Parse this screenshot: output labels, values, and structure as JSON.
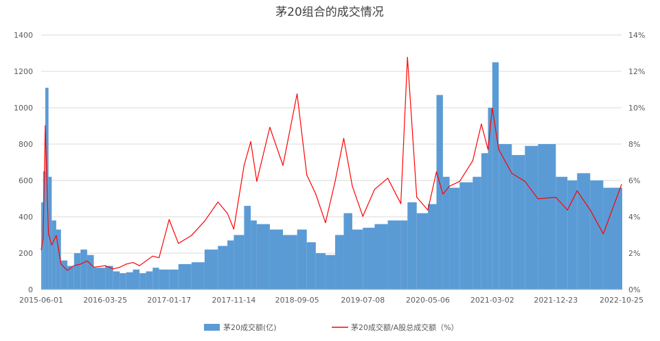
{
  "chart_data": {
    "type": "bar",
    "title": "茅20组合的成交情况",
    "grid": true,
    "legend_position": "bottom",
    "x_tick_labels": [
      "2015-06-01",
      "2016-03-25",
      "2017-01-17",
      "2017-11-14",
      "2018-09-05",
      "2019-07-08",
      "2020-05-06",
      "2021-03-02",
      "2021-12-23",
      "2022-10-25"
    ],
    "y_left": {
      "range": [
        0,
        1400
      ],
      "ticks": [
        "0",
        "200",
        "400",
        "600",
        "800",
        "1000",
        "1200",
        "1400"
      ]
    },
    "y_right": {
      "range": [
        0,
        16
      ],
      "ticks": [
        "0%",
        "2%",
        "4%",
        "6%",
        "8%",
        "10%",
        "12%",
        "14%",
        "16%"
      ]
    },
    "series": [
      {
        "name": "茅20成交额(亿)",
        "type": "bar",
        "axis": "left",
        "color": "#5b9bd5",
        "x": [
          "2015-06-01",
          "2015-06-10",
          "2015-06-20",
          "2015-07-05",
          "2015-07-20",
          "2015-08-10",
          "2015-09-01",
          "2015-10-01",
          "2015-11-01",
          "2015-12-01",
          "2016-01-01",
          "2016-02-01",
          "2016-03-25",
          "2016-05-01",
          "2016-06-01",
          "2016-07-01",
          "2016-08-01",
          "2016-09-01",
          "2016-10-01",
          "2016-11-01",
          "2016-12-01",
          "2017-01-17",
          "2017-03-01",
          "2017-05-01",
          "2017-07-01",
          "2017-09-01",
          "2017-10-15",
          "2017-11-14",
          "2018-01-01",
          "2018-02-01",
          "2018-03-01",
          "2018-05-01",
          "2018-07-01",
          "2018-09-05",
          "2018-10-20",
          "2018-12-01",
          "2019-01-15",
          "2019-03-01",
          "2019-04-10",
          "2019-05-20",
          "2019-07-08",
          "2019-09-01",
          "2019-11-01",
          "2020-01-01",
          "2020-02-01",
          "2020-03-15",
          "2020-05-06",
          "2020-06-15",
          "2020-07-15",
          "2020-08-15",
          "2020-10-01",
          "2020-12-01",
          "2021-01-10",
          "2021-02-10",
          "2021-03-02",
          "2021-04-01",
          "2021-06-01",
          "2021-08-01",
          "2021-10-01",
          "2021-12-23",
          "2022-02-15",
          "2022-04-01",
          "2022-06-01",
          "2022-08-01",
          "2022-10-25"
        ],
        "values": [
          480,
          650,
          1110,
          620,
          380,
          330,
          160,
          130,
          200,
          220,
          190,
          120,
          130,
          100,
          90,
          95,
          110,
          90,
          100,
          120,
          110,
          110,
          140,
          150,
          220,
          240,
          270,
          300,
          460,
          380,
          360,
          330,
          300,
          330,
          260,
          200,
          190,
          300,
          420,
          330,
          340,
          360,
          380,
          380,
          480,
          420,
          470,
          1070,
          620,
          560,
          590,
          620,
          750,
          1000,
          1250,
          800,
          740,
          790,
          800,
          620,
          600,
          640,
          600,
          560,
          560
        ]
      },
      {
        "name": "茅20成交额/A股总成交额（%）",
        "type": "line",
        "axis": "right",
        "color": "#ff0000",
        "x": [
          "2015-06-01",
          "2015-06-10",
          "2015-06-20",
          "2015-07-05",
          "2015-07-20",
          "2015-08-10",
          "2015-09-01",
          "2015-10-01",
          "2015-11-01",
          "2015-12-01",
          "2016-01-01",
          "2016-02-01",
          "2016-03-25",
          "2016-05-01",
          "2016-06-01",
          "2016-07-01",
          "2016-08-01",
          "2016-09-01",
          "2016-10-01",
          "2016-11-01",
          "2016-12-01",
          "2017-01-17",
          "2017-03-01",
          "2017-05-01",
          "2017-07-01",
          "2017-09-01",
          "2017-10-15",
          "2017-11-14",
          "2018-01-01",
          "2018-02-01",
          "2018-03-01",
          "2018-05-01",
          "2018-07-01",
          "2018-09-05",
          "2018-10-20",
          "2018-12-01",
          "2019-01-15",
          "2019-03-01",
          "2019-04-10",
          "2019-05-20",
          "2019-07-08",
          "2019-09-01",
          "2019-11-01",
          "2020-01-01",
          "2020-02-01",
          "2020-03-15",
          "2020-05-06",
          "2020-06-15",
          "2020-07-15",
          "2020-08-15",
          "2020-10-01",
          "2020-12-01",
          "2021-01-10",
          "2021-02-10",
          "2021-03-02",
          "2021-04-01",
          "2021-06-01",
          "2021-08-01",
          "2021-10-01",
          "2021-12-23",
          "2022-02-15",
          "2022-04-01",
          "2022-06-01",
          "2022-08-01",
          "2022-10-25"
        ],
        "values": [
          2.5,
          3.2,
          10.3,
          3.5,
          2.8,
          3.4,
          1.6,
          1.2,
          1.5,
          1.6,
          1.8,
          1.4,
          1.5,
          1.3,
          1.4,
          1.6,
          1.7,
          1.5,
          1.8,
          2.1,
          2.0,
          4.4,
          2.9,
          3.4,
          4.3,
          5.5,
          4.8,
          3.8,
          7.8,
          9.3,
          6.8,
          10.2,
          7.8,
          12.3,
          7.2,
          6.0,
          4.2,
          6.8,
          9.5,
          6.5,
          4.6,
          6.3,
          7.0,
          5.4,
          14.6,
          5.8,
          5.0,
          7.4,
          6.0,
          6.5,
          6.8,
          8.1,
          10.4,
          8.8,
          11.4,
          8.8,
          7.3,
          6.8,
          5.7,
          5.8,
          5.0,
          6.2,
          5.0,
          3.5,
          6.6
        ]
      }
    ]
  }
}
